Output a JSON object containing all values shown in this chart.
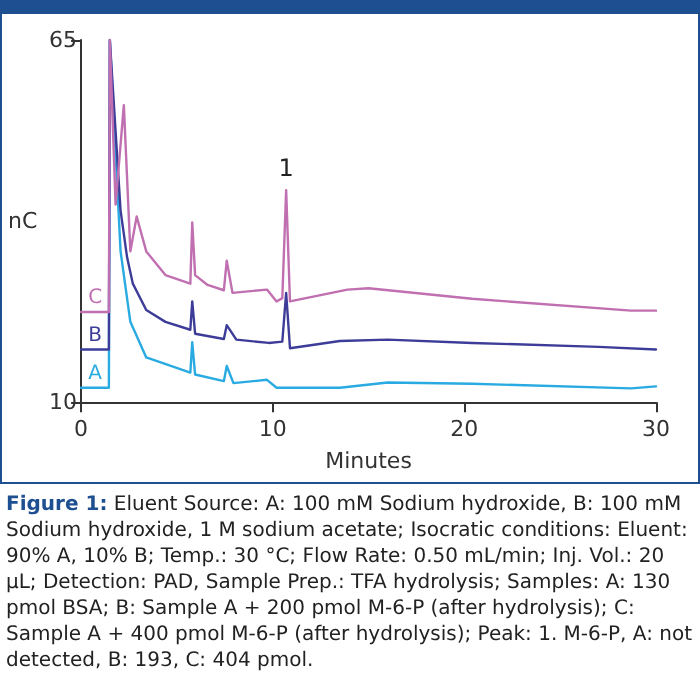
{
  "chart_data": {
    "type": "line",
    "xlabel": "Minutes",
    "ylabel": "nC",
    "xlim": [
      0,
      30
    ],
    "xticks": [
      0,
      10,
      20,
      30
    ],
    "ylim": [
      10,
      65
    ],
    "yticks": [
      10,
      65
    ],
    "grid": false,
    "legend": false,
    "marker": "none",
    "line_style": "solid",
    "series": [
      {
        "name": "A",
        "color": "#29abe2",
        "x": [
          0,
          1.3,
          1.45,
          1.5,
          2.06,
          2.57,
          3.4,
          5.7,
          5.8,
          5.95,
          7.45,
          7.6,
          7.95,
          9.7,
          10.2,
          13.5,
          16,
          20.4,
          28.7,
          30
        ],
        "values": [
          12.2,
          12.2,
          12.2,
          65,
          32.9,
          22.2,
          16.8,
          14.5,
          19.1,
          14.2,
          13.2,
          15.5,
          12.9,
          13.4,
          12.2,
          12.2,
          13,
          12.8,
          12.1,
          12.4
        ]
      },
      {
        "name": "B",
        "color": "#3d3d99",
        "x": [
          0,
          1.3,
          1.45,
          1.5,
          2.06,
          2.4,
          2.7,
          3.4,
          4.4,
          5.7,
          5.8,
          5.95,
          7.45,
          7.6,
          8.1,
          9.8,
          10.5,
          10.7,
          10.9,
          13.5,
          16,
          20.4,
          27,
          30
        ],
        "values": [
          18,
          18,
          18,
          65,
          39.1,
          32,
          28,
          24,
          22.2,
          21,
          25.3,
          20.4,
          19.6,
          21.7,
          19.5,
          19,
          19.2,
          26.6,
          18.2,
          19.3,
          19.5,
          19,
          18.4,
          18
        ]
      },
      {
        "name": "C",
        "color": "#c06fb0",
        "x": [
          0,
          1.3,
          1.45,
          1.5,
          1.8,
          2.23,
          2.57,
          2.9,
          3.4,
          4.4,
          5.7,
          5.8,
          5.95,
          6.6,
          7.45,
          7.6,
          7.9,
          9.7,
          10.2,
          10.5,
          10.7,
          10.9,
          13.9,
          15,
          20.4,
          28.7,
          30
        ],
        "values": [
          23.7,
          23.7,
          23.7,
          65,
          40,
          55.1,
          32.9,
          38.2,
          32.9,
          29.3,
          28,
          37.3,
          29.3,
          27.8,
          27,
          31.5,
          26.6,
          27.1,
          25.3,
          25.8,
          42.2,
          25.3,
          27.1,
          27.3,
          25.7,
          23.9,
          23.9
        ]
      }
    ],
    "annotations": [
      {
        "text": "1",
        "x": 10.7,
        "y": 42.2
      },
      "Figure 1: Eluent Source: A: 100 mM Sodium hydroxide, B: 100 mM Sodium hydroxide, 1 M sodium acetate; Isocratic conditions: Eluent: 90% A, 10% B; Temp.: 30 °C; Flow Rate: 0.50 mL/min; Inj. Vol.: 20 µL; Detection: PAD, Sample Prep.: TFA hydrolysis; Samples: A: 130 pmol BSA; B: Sample A + 200 pmol M-6-P (after hydrolysis); C: Sample A + 400 pmol M-6-P (after hydrolysis); Peak: 1. M-6-P, A: not detected, B: 193, C: 404 pmol."
    ]
  }
}
